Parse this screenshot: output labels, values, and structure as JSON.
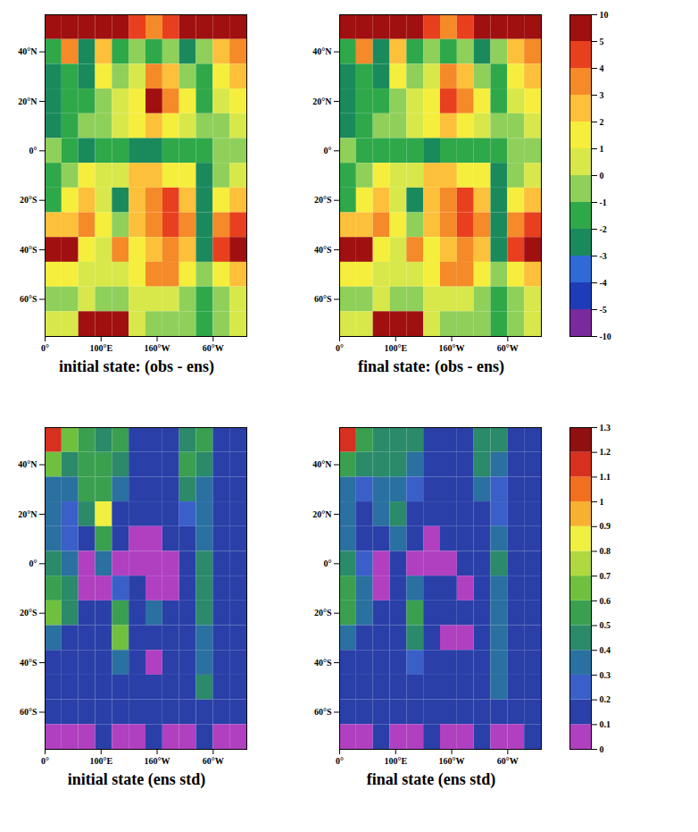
{
  "chart_data": [
    {
      "type": "heatmap",
      "title": "initial state: (obs - ens)",
      "xlim": [
        0,
        360
      ],
      "xticks": [
        {
          "value": 0,
          "label": "0°"
        },
        {
          "value": 100,
          "label": "100°E"
        },
        {
          "value": 200,
          "label": "160°W"
        },
        {
          "value": 300,
          "label": "60°W"
        }
      ],
      "ylim": [
        -75,
        55
      ],
      "yticks": [
        {
          "value": 40,
          "label": "40°N"
        },
        {
          "value": 20,
          "label": "20°N"
        },
        {
          "value": 0,
          "label": "0°"
        },
        {
          "value": -20,
          "label": "20°S"
        },
        {
          "value": -40,
          "label": "40°S"
        },
        {
          "value": -60,
          "label": "60°S"
        }
      ],
      "lon_edges": [
        0,
        30,
        60,
        90,
        120,
        150,
        180,
        210,
        240,
        270,
        300,
        330,
        360
      ],
      "lat_edges": [
        55,
        45,
        35,
        25,
        15,
        5,
        -5,
        -15,
        -25,
        -35,
        -45,
        -55,
        -65,
        -75
      ],
      "values": [
        [
          6,
          8,
          6,
          5,
          6,
          4,
          3,
          4,
          6,
          5,
          6,
          7
        ],
        [
          -2,
          3,
          -3,
          2,
          -2,
          -1,
          -2,
          -1,
          -3,
          -1,
          2,
          3
        ],
        [
          -3,
          -2,
          -3,
          1,
          -1,
          0,
          3,
          2,
          -1,
          -2,
          1,
          2
        ],
        [
          -3,
          -2,
          -2,
          -1,
          0,
          1,
          5,
          3,
          1,
          -2,
          0,
          1
        ],
        [
          -3,
          -2,
          -1,
          -1,
          0,
          1,
          2,
          1,
          0,
          -1,
          -1,
          0
        ],
        [
          -1,
          -2,
          -3,
          -2,
          -2,
          -3,
          -3,
          -2,
          -2,
          -2,
          -1,
          -1
        ],
        [
          -2,
          -1,
          1,
          0,
          0,
          2,
          2,
          1,
          1,
          -3,
          -1,
          0
        ],
        [
          -2,
          1,
          2,
          0,
          -3,
          2,
          3,
          4,
          2,
          -3,
          1,
          2
        ],
        [
          2,
          2,
          3,
          1,
          -1,
          2,
          3,
          4,
          3,
          -3,
          3,
          4
        ],
        [
          5,
          5,
          1,
          0,
          3,
          1,
          2,
          3,
          2,
          -3,
          4,
          5
        ],
        [
          1,
          1,
          0,
          0,
          0,
          1,
          3,
          3,
          1,
          -1,
          1,
          2
        ],
        [
          -1,
          -1,
          0,
          -1,
          -1,
          0,
          0,
          0,
          -1,
          -2,
          -1,
          0
        ],
        [
          0,
          0,
          6,
          8,
          6,
          0,
          -1,
          -1,
          -1,
          -2,
          -1,
          0
        ]
      ],
      "colorbar": {
        "ticks": [
          -10,
          -5,
          -4,
          -3,
          -2,
          -1,
          0,
          1,
          2,
          3,
          4,
          5,
          10
        ],
        "colors": [
          "#7a2a9c",
          "#1f3cb8",
          "#2f6ad6",
          "#1a8a5c",
          "#2fa84a",
          "#8fd05a",
          "#d8e84a",
          "#f5ee3c",
          "#fcc03a",
          "#f58a28",
          "#e8401e",
          "#a01010"
        ]
      }
    },
    {
      "type": "heatmap",
      "title": "final state: (obs - ens)",
      "xlim": [
        0,
        360
      ],
      "xticks": [
        {
          "value": 0,
          "label": "0°"
        },
        {
          "value": 100,
          "label": "100°E"
        },
        {
          "value": 200,
          "label": "160°W"
        },
        {
          "value": 300,
          "label": "60°W"
        }
      ],
      "ylim": [
        -75,
        55
      ],
      "yticks": [
        {
          "value": 40,
          "label": "40°N"
        },
        {
          "value": 20,
          "label": "20°N"
        },
        {
          "value": 0,
          "label": "0°"
        },
        {
          "value": -20,
          "label": "20°S"
        },
        {
          "value": -40,
          "label": "40°S"
        },
        {
          "value": -60,
          "label": "60°S"
        }
      ],
      "lon_edges": [
        0,
        30,
        60,
        90,
        120,
        150,
        180,
        210,
        240,
        270,
        300,
        330,
        360
      ],
      "lat_edges": [
        55,
        45,
        35,
        25,
        15,
        5,
        -5,
        -15,
        -25,
        -35,
        -45,
        -55,
        -65,
        -75
      ],
      "values": [
        [
          6,
          8,
          6,
          5,
          6,
          4,
          3,
          4,
          6,
          5,
          6,
          7
        ],
        [
          -2,
          3,
          -3,
          2,
          -2,
          -1,
          -2,
          -1,
          -3,
          -1,
          2,
          3
        ],
        [
          -3,
          -2,
          -3,
          1,
          -1,
          0,
          3,
          2,
          -1,
          -2,
          1,
          2
        ],
        [
          -3,
          -2,
          -2,
          -1,
          0,
          1,
          4,
          3,
          1,
          -2,
          0,
          1
        ],
        [
          -3,
          -2,
          -1,
          -1,
          0,
          1,
          2,
          1,
          0,
          -1,
          -1,
          0
        ],
        [
          -1,
          -2,
          -2,
          -2,
          -2,
          -3,
          -2,
          -2,
          -2,
          -2,
          -1,
          -1
        ],
        [
          -2,
          -1,
          1,
          0,
          0,
          2,
          2,
          1,
          1,
          -3,
          -1,
          0
        ],
        [
          -2,
          1,
          2,
          0,
          -3,
          2,
          3,
          4,
          2,
          -3,
          1,
          2
        ],
        [
          2,
          2,
          3,
          1,
          -1,
          2,
          3,
          4,
          3,
          -3,
          3,
          4
        ],
        [
          5,
          5,
          1,
          0,
          3,
          1,
          2,
          3,
          2,
          -3,
          4,
          5
        ],
        [
          1,
          1,
          0,
          0,
          0,
          1,
          3,
          3,
          1,
          -1,
          1,
          2
        ],
        [
          -1,
          -1,
          0,
          -1,
          -1,
          0,
          0,
          0,
          -1,
          -2,
          -1,
          0
        ],
        [
          0,
          0,
          6,
          8,
          5,
          0,
          -1,
          -1,
          -1,
          -2,
          -1,
          0
        ]
      ],
      "colorbar": {
        "ticks": [
          -10,
          -5,
          -4,
          -3,
          -2,
          -1,
          0,
          1,
          2,
          3,
          4,
          5,
          10
        ],
        "colors": [
          "#7a2a9c",
          "#1f3cb8",
          "#2f6ad6",
          "#1a8a5c",
          "#2fa84a",
          "#8fd05a",
          "#d8e84a",
          "#f5ee3c",
          "#fcc03a",
          "#f58a28",
          "#e8401e",
          "#a01010"
        ]
      }
    },
    {
      "type": "heatmap",
      "title": "initial state (ens std)",
      "xlim": [
        0,
        360
      ],
      "xticks": [
        {
          "value": 0,
          "label": "0°"
        },
        {
          "value": 100,
          "label": "100°E"
        },
        {
          "value": 200,
          "label": "160°W"
        },
        {
          "value": 300,
          "label": "60°W"
        }
      ],
      "ylim": [
        -75,
        55
      ],
      "yticks": [
        {
          "value": 40,
          "label": "40°N"
        },
        {
          "value": 20,
          "label": "20°N"
        },
        {
          "value": 0,
          "label": "0°"
        },
        {
          "value": -20,
          "label": "20°S"
        },
        {
          "value": -40,
          "label": "40°S"
        },
        {
          "value": -60,
          "label": "60°S"
        }
      ],
      "lon_edges": [
        0,
        30,
        60,
        90,
        120,
        150,
        180,
        210,
        240,
        270,
        300,
        330,
        360
      ],
      "lat_edges": [
        55,
        45,
        35,
        25,
        15,
        5,
        -5,
        -15,
        -25,
        -35,
        -45,
        -55,
        -65,
        -75
      ],
      "values": [
        [
          1.1,
          0.6,
          0.5,
          0.4,
          0.5,
          0.15,
          0.15,
          0.15,
          0.4,
          0.5,
          0.15,
          0.15
        ],
        [
          0.6,
          0.4,
          0.5,
          0.5,
          0.4,
          0.15,
          0.15,
          0.15,
          0.5,
          0.4,
          0.15,
          0.15
        ],
        [
          0.3,
          0.3,
          0.5,
          0.5,
          0.3,
          0.15,
          0.15,
          0.15,
          0.4,
          0.3,
          0.15,
          0.15
        ],
        [
          0.3,
          0.2,
          0.4,
          0.8,
          0.15,
          0.15,
          0.15,
          0.15,
          0.2,
          0.3,
          0.15,
          0.15
        ],
        [
          0.3,
          0.2,
          0.15,
          0.5,
          0.15,
          0.05,
          0.05,
          0.15,
          0.15,
          0.3,
          0.15,
          0.15
        ],
        [
          0.4,
          0.3,
          0.05,
          0.3,
          0.05,
          0.05,
          0.05,
          0.05,
          0.15,
          0.4,
          0.15,
          0.15
        ],
        [
          0.5,
          0.4,
          0.05,
          0.05,
          0.2,
          0.15,
          0.05,
          0.05,
          0.15,
          0.4,
          0.15,
          0.15
        ],
        [
          0.6,
          0.4,
          0.15,
          0.15,
          0.5,
          0.15,
          0.3,
          0.15,
          0.15,
          0.4,
          0.15,
          0.15
        ],
        [
          0.3,
          0.15,
          0.15,
          0.15,
          0.6,
          0.15,
          0.15,
          0.15,
          0.15,
          0.3,
          0.15,
          0.15
        ],
        [
          0.15,
          0.15,
          0.15,
          0.15,
          0.3,
          0.15,
          0.05,
          0.15,
          0.15,
          0.3,
          0.15,
          0.15
        ],
        [
          0.15,
          0.15,
          0.15,
          0.15,
          0.15,
          0.15,
          0.15,
          0.15,
          0.15,
          0.4,
          0.15,
          0.15
        ],
        [
          0.15,
          0.15,
          0.15,
          0.15,
          0.15,
          0.15,
          0.15,
          0.15,
          0.15,
          0.15,
          0.15,
          0.15
        ],
        [
          0.05,
          0.05,
          0.05,
          0.15,
          0.05,
          0.05,
          0.15,
          0.05,
          0.05,
          0.15,
          0.05,
          0.05
        ]
      ],
      "colorbar": {
        "ticks": [
          0,
          0.1,
          0.2,
          0.3,
          0.4,
          0.5,
          0.6,
          0.7,
          0.8,
          0.9,
          1,
          1.1,
          1.2,
          1.3
        ],
        "colors": [
          "#b040c0",
          "#2a40a8",
          "#3a5fc8",
          "#2a70a0",
          "#2a8a6a",
          "#3aa050",
          "#70c040",
          "#b0d840",
          "#f0f040",
          "#f8b030",
          "#f07020",
          "#d83020",
          "#901010"
        ]
      }
    },
    {
      "type": "heatmap",
      "title": "final state (ens std)",
      "xlim": [
        0,
        360
      ],
      "xticks": [
        {
          "value": 0,
          "label": "0°"
        },
        {
          "value": 100,
          "label": "100°E"
        },
        {
          "value": 200,
          "label": "160°W"
        },
        {
          "value": 300,
          "label": "60°W"
        }
      ],
      "ylim": [
        -75,
        55
      ],
      "yticks": [
        {
          "value": 40,
          "label": "40°N"
        },
        {
          "value": 20,
          "label": "20°N"
        },
        {
          "value": 0,
          "label": "0°"
        },
        {
          "value": -20,
          "label": "20°S"
        },
        {
          "value": -40,
          "label": "40°S"
        },
        {
          "value": -60,
          "label": "60°S"
        }
      ],
      "lon_edges": [
        0,
        30,
        60,
        90,
        120,
        150,
        180,
        210,
        240,
        270,
        300,
        330,
        360
      ],
      "lat_edges": [
        55,
        45,
        35,
        25,
        15,
        5,
        -5,
        -15,
        -25,
        -35,
        -45,
        -55,
        -65,
        -75
      ],
      "values": [
        [
          1.1,
          0.5,
          0.4,
          0.4,
          0.4,
          0.15,
          0.15,
          0.15,
          0.4,
          0.4,
          0.15,
          0.15
        ],
        [
          0.5,
          0.4,
          0.4,
          0.4,
          0.3,
          0.15,
          0.15,
          0.15,
          0.4,
          0.3,
          0.15,
          0.15
        ],
        [
          0.3,
          0.2,
          0.3,
          0.3,
          0.2,
          0.15,
          0.15,
          0.15,
          0.3,
          0.2,
          0.15,
          0.15
        ],
        [
          0.3,
          0.15,
          0.3,
          0.4,
          0.15,
          0.15,
          0.15,
          0.15,
          0.15,
          0.2,
          0.15,
          0.15
        ],
        [
          0.3,
          0.15,
          0.15,
          0.3,
          0.15,
          0.05,
          0.15,
          0.15,
          0.15,
          0.3,
          0.15,
          0.15
        ],
        [
          0.4,
          0.2,
          0.05,
          0.15,
          0.05,
          0.05,
          0.05,
          0.15,
          0.15,
          0.4,
          0.15,
          0.15
        ],
        [
          0.5,
          0.3,
          0.05,
          0.15,
          0.3,
          0.15,
          0.15,
          0.05,
          0.15,
          0.3,
          0.15,
          0.15
        ],
        [
          0.5,
          0.3,
          0.15,
          0.15,
          0.5,
          0.15,
          0.15,
          0.15,
          0.15,
          0.3,
          0.15,
          0.15
        ],
        [
          0.3,
          0.15,
          0.15,
          0.15,
          0.4,
          0.15,
          0.05,
          0.05,
          0.15,
          0.3,
          0.15,
          0.15
        ],
        [
          0.15,
          0.15,
          0.15,
          0.15,
          0.2,
          0.15,
          0.15,
          0.15,
          0.15,
          0.3,
          0.15,
          0.15
        ],
        [
          0.15,
          0.15,
          0.15,
          0.15,
          0.15,
          0.15,
          0.15,
          0.15,
          0.15,
          0.3,
          0.15,
          0.15
        ],
        [
          0.15,
          0.15,
          0.15,
          0.15,
          0.15,
          0.15,
          0.15,
          0.15,
          0.15,
          0.15,
          0.15,
          0.15
        ],
        [
          0.05,
          0.05,
          0.15,
          0.05,
          0.05,
          0.15,
          0.05,
          0.05,
          0.15,
          0.05,
          0.05,
          0.15
        ]
      ],
      "colorbar": {
        "ticks": [
          0,
          0.1,
          0.2,
          0.3,
          0.4,
          0.5,
          0.6,
          0.7,
          0.8,
          0.9,
          1,
          1.1,
          1.2,
          1.3
        ],
        "colors": [
          "#b040c0",
          "#2a40a8",
          "#3a5fc8",
          "#2a70a0",
          "#2a8a6a",
          "#3aa050",
          "#70c040",
          "#b0d840",
          "#f0f040",
          "#f8b030",
          "#f07020",
          "#d83020",
          "#901010"
        ]
      }
    }
  ]
}
